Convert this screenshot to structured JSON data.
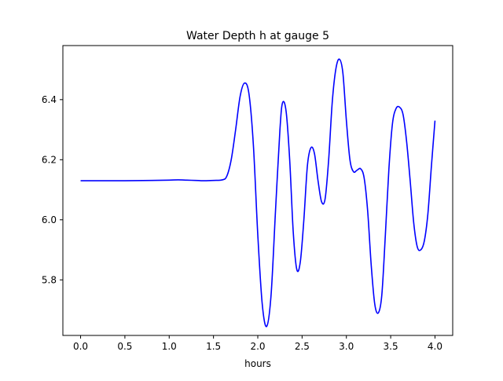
{
  "chart_data": {
    "type": "line",
    "title": "Water Depth h at gauge 5",
    "xlabel": "hours",
    "ylabel": "",
    "xlim": [
      -0.2,
      4.2
    ],
    "ylim": [
      5.615,
      6.58
    ],
    "xticks": [
      0.0,
      0.5,
      1.0,
      1.5,
      2.0,
      2.5,
      3.0,
      3.5,
      4.0
    ],
    "xtick_labels": [
      "0.0",
      "0.5",
      "1.0",
      "1.5",
      "2.0",
      "2.5",
      "3.0",
      "3.5",
      "4.0"
    ],
    "yticks": [
      5.8,
      6.0,
      6.2,
      6.4
    ],
    "ytick_labels": [
      "5.8",
      "6.0",
      "6.2",
      "6.4"
    ],
    "grid": false,
    "series": [
      {
        "color": "#0000ff",
        "x": [
          0.0,
          0.2,
          0.5,
          0.8,
          1.0,
          1.1,
          1.2,
          1.3,
          1.4,
          1.5,
          1.6,
          1.65,
          1.7,
          1.75,
          1.8,
          1.85,
          1.9,
          1.95,
          2.0,
          2.05,
          2.1,
          2.15,
          2.2,
          2.25,
          2.28,
          2.32,
          2.36,
          2.4,
          2.44,
          2.48,
          2.52,
          2.56,
          2.6,
          2.64,
          2.68,
          2.72,
          2.76,
          2.8,
          2.84,
          2.88,
          2.92,
          2.96,
          3.0,
          3.04,
          3.08,
          3.12,
          3.16,
          3.2,
          3.24,
          3.28,
          3.32,
          3.36,
          3.4,
          3.44,
          3.48,
          3.52,
          3.56,
          3.6,
          3.64,
          3.68,
          3.72,
          3.76,
          3.8,
          3.84,
          3.88,
          3.92,
          3.96,
          4.0
        ],
        "y": [
          6.13,
          6.13,
          6.13,
          6.131,
          6.132,
          6.133,
          6.132,
          6.131,
          6.13,
          6.131,
          6.133,
          6.145,
          6.2,
          6.3,
          6.41,
          6.455,
          6.42,
          6.25,
          5.95,
          5.72,
          5.645,
          5.75,
          6.03,
          6.3,
          6.39,
          6.36,
          6.2,
          5.96,
          5.835,
          5.86,
          6.0,
          6.18,
          6.24,
          6.22,
          6.13,
          6.06,
          6.07,
          6.2,
          6.39,
          6.5,
          6.535,
          6.49,
          6.33,
          6.2,
          6.16,
          6.165,
          6.17,
          6.14,
          6.03,
          5.85,
          5.72,
          5.69,
          5.75,
          5.95,
          6.17,
          6.32,
          6.37,
          6.375,
          6.35,
          6.26,
          6.13,
          5.99,
          5.91,
          5.9,
          5.93,
          6.02,
          6.18,
          6.33
        ]
      }
    ]
  }
}
